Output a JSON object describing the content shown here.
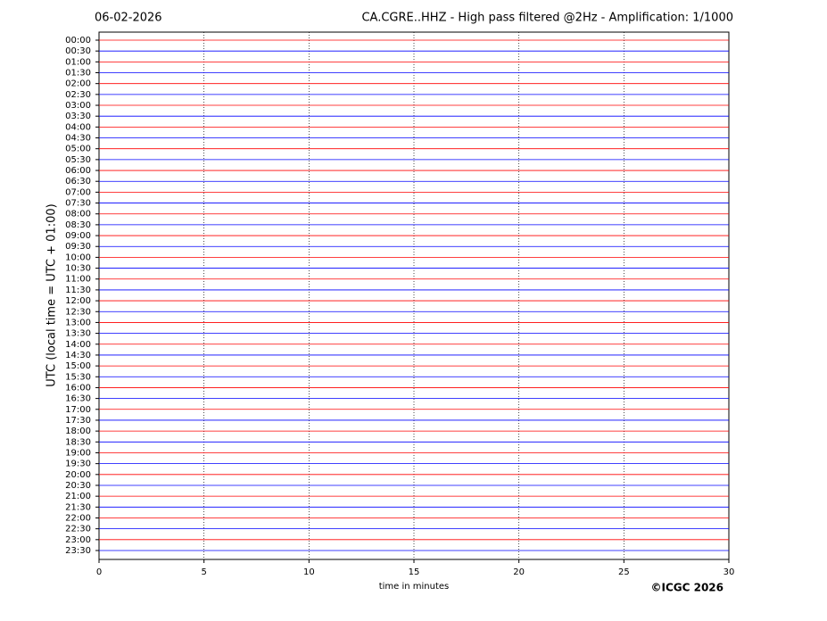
{
  "chart_data": {
    "type": "helicorder",
    "date": "06-02-2026",
    "title": "CA.CGRE..HHZ - High pass filtered @2Hz - Amplification: 1/1000",
    "ylabel": "UTC (local time = UTC + 01:00)",
    "xlabel": "time in minutes",
    "copyright": "©ICGC 2026",
    "xlim": [
      0,
      30
    ],
    "xticks": [
      0,
      5,
      10,
      15,
      20,
      25,
      30
    ],
    "grid": true,
    "colors": [
      "#ff0000",
      "#0000ff"
    ],
    "categories": [
      "00:00",
      "00:30",
      "01:00",
      "01:30",
      "02:00",
      "02:30",
      "03:00",
      "03:30",
      "04:00",
      "04:30",
      "05:00",
      "05:30",
      "06:00",
      "06:30",
      "07:00",
      "07:30",
      "08:00",
      "08:30",
      "09:00",
      "09:30",
      "10:00",
      "10:30",
      "11:00",
      "11:30",
      "12:00",
      "12:30",
      "13:00",
      "13:30",
      "14:00",
      "14:30",
      "15:00",
      "15:30",
      "16:00",
      "16:30",
      "17:00",
      "17:30",
      "18:00",
      "18:30",
      "19:00",
      "19:30",
      "20:00",
      "20:30",
      "21:00",
      "21:30",
      "22:00",
      "22:30",
      "23:00",
      "23:30"
    ]
  }
}
